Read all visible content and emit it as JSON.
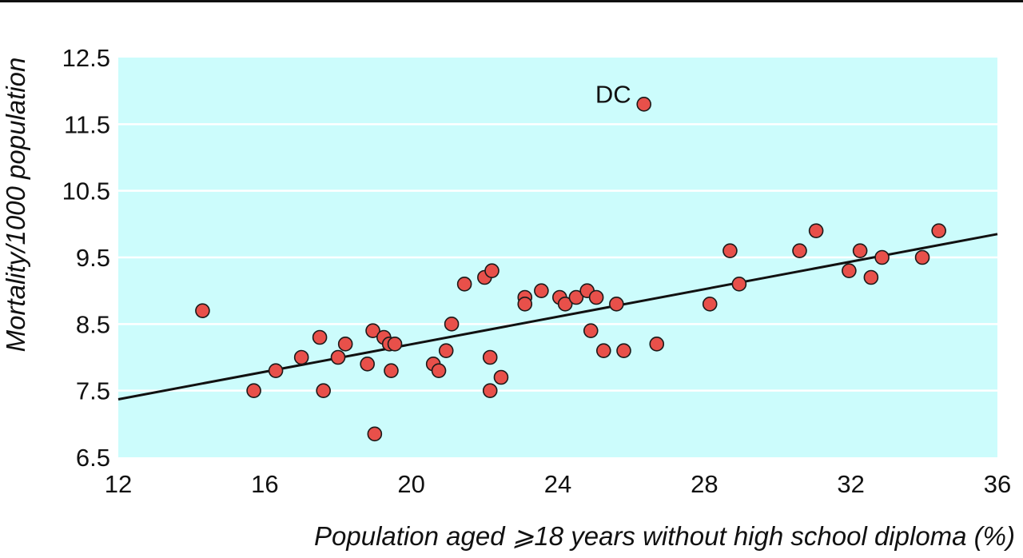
{
  "chart_data": {
    "type": "scatter",
    "title": "",
    "xlabel": "Population aged ⩾18 years without high school diploma (%)",
    "ylabel": "Mortality/1000 population",
    "xlim": [
      12,
      36
    ],
    "ylim": [
      6.5,
      12.5
    ],
    "x_ticks": [
      "12",
      "16",
      "20",
      "24",
      "28",
      "32",
      "36"
    ],
    "y_ticks": [
      "6.5",
      "7.5",
      "8.5",
      "9.5",
      "10.5",
      "11.5",
      "12.5"
    ],
    "grid": "horizontal",
    "colors": {
      "plot_background": "#ccfcfc",
      "gridlines": "#ffffff",
      "points": "#e8504a",
      "trend_line": "#111111",
      "top_rule": "#111111"
    },
    "points": [
      {
        "x": 14.3,
        "y": 8.7
      },
      {
        "x": 15.7,
        "y": 7.5
      },
      {
        "x": 16.3,
        "y": 7.8
      },
      {
        "x": 17.0,
        "y": 8.0
      },
      {
        "x": 17.5,
        "y": 8.3
      },
      {
        "x": 17.6,
        "y": 7.5
      },
      {
        "x": 18.0,
        "y": 8.0
      },
      {
        "x": 18.2,
        "y": 8.2
      },
      {
        "x": 18.8,
        "y": 7.9
      },
      {
        "x": 18.95,
        "y": 8.4
      },
      {
        "x": 19.25,
        "y": 8.3
      },
      {
        "x": 19.4,
        "y": 8.2
      },
      {
        "x": 19.45,
        "y": 7.8
      },
      {
        "x": 19.55,
        "y": 8.2
      },
      {
        "x": 19.0,
        "y": 6.85
      },
      {
        "x": 20.6,
        "y": 7.9
      },
      {
        "x": 20.75,
        "y": 7.8
      },
      {
        "x": 20.95,
        "y": 8.1
      },
      {
        "x": 21.1,
        "y": 8.5
      },
      {
        "x": 21.45,
        "y": 9.1
      },
      {
        "x": 22.0,
        "y": 9.2
      },
      {
        "x": 22.2,
        "y": 9.3
      },
      {
        "x": 22.15,
        "y": 8.0
      },
      {
        "x": 22.15,
        "y": 7.5
      },
      {
        "x": 22.45,
        "y": 7.7
      },
      {
        "x": 23.1,
        "y": 8.9
      },
      {
        "x": 23.1,
        "y": 8.8
      },
      {
        "x": 23.55,
        "y": 9.0
      },
      {
        "x": 24.05,
        "y": 8.9
      },
      {
        "x": 24.2,
        "y": 8.8
      },
      {
        "x": 24.5,
        "y": 8.9
      },
      {
        "x": 24.8,
        "y": 9.0
      },
      {
        "x": 24.9,
        "y": 8.4
      },
      {
        "x": 25.05,
        "y": 8.9
      },
      {
        "x": 25.25,
        "y": 8.1
      },
      {
        "x": 25.6,
        "y": 8.8
      },
      {
        "x": 25.8,
        "y": 8.1
      },
      {
        "x": 26.35,
        "y": 11.8,
        "label": "DC"
      },
      {
        "x": 26.7,
        "y": 8.2
      },
      {
        "x": 28.15,
        "y": 8.8
      },
      {
        "x": 28.7,
        "y": 9.6
      },
      {
        "x": 28.95,
        "y": 9.1
      },
      {
        "x": 30.6,
        "y": 9.6
      },
      {
        "x": 31.05,
        "y": 9.9
      },
      {
        "x": 31.95,
        "y": 9.3
      },
      {
        "x": 32.25,
        "y": 9.6
      },
      {
        "x": 32.55,
        "y": 9.2
      },
      {
        "x": 32.85,
        "y": 9.5
      },
      {
        "x": 33.95,
        "y": 9.5
      },
      {
        "x": 34.4,
        "y": 9.9
      }
    ],
    "trend_line": {
      "x": [
        12,
        36
      ],
      "y": [
        7.37,
        9.85
      ]
    }
  }
}
